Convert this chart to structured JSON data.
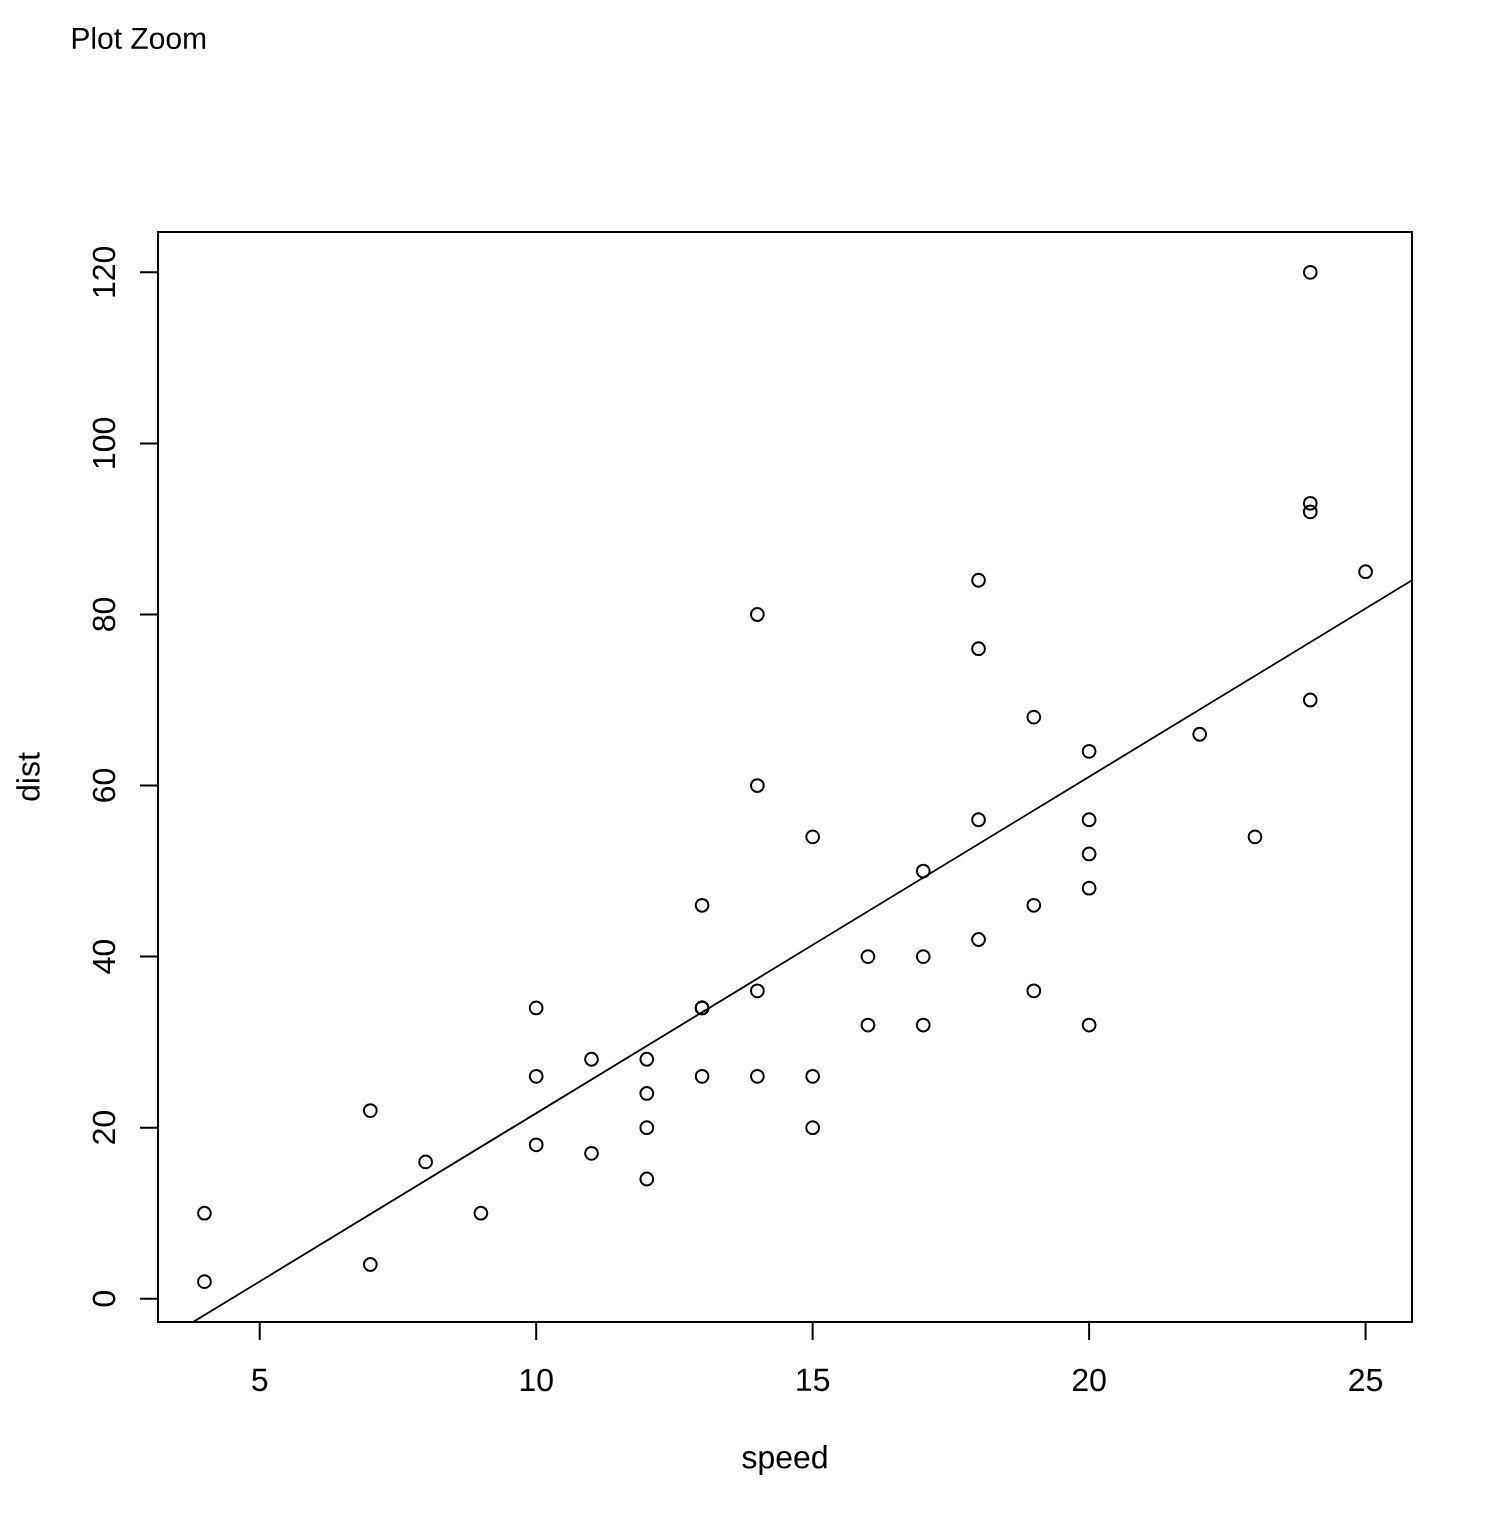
{
  "chart_data": {
    "type": "scatter",
    "xlabel": "speed",
    "ylabel": "dist",
    "annotations": [
      "Plot Zoom"
    ],
    "series": [
      {
        "type": "scatter",
        "color": "#000000",
        "marker": "circle",
        "x": [
          4,
          4,
          7,
          7,
          8,
          9,
          10,
          10,
          10,
          11,
          11,
          12,
          12,
          12,
          12,
          13,
          13,
          13,
          13,
          14,
          14,
          14,
          14,
          15,
          15,
          15,
          16,
          16,
          17,
          17,
          17,
          18,
          18,
          18,
          18,
          19,
          19,
          19,
          20,
          20,
          20,
          20,
          20,
          22,
          23,
          24,
          24,
          24,
          24,
          25
        ],
        "values": [
          2,
          10,
          4,
          22,
          16,
          10,
          18,
          26,
          34,
          17,
          28,
          14,
          20,
          24,
          28,
          26,
          34,
          34,
          46,
          26,
          36,
          60,
          80,
          20,
          26,
          54,
          32,
          40,
          32,
          40,
          50,
          42,
          56,
          76,
          84,
          36,
          46,
          68,
          32,
          48,
          52,
          56,
          64,
          66,
          54,
          70,
          92,
          93,
          120,
          85
        ]
      },
      {
        "type": "line",
        "color": "#000000",
        "marker": "none",
        "line_style": "solid",
        "x": [
          3.8,
          25.84
        ],
        "values": [
          -2.7,
          84
        ]
      }
    ],
    "xlim": [
      3.16,
      25.84
    ],
    "ylim": [
      -2.72,
      124.72
    ],
    "xticks": [
      5,
      10,
      15,
      20,
      25
    ],
    "yticks": [
      0,
      20,
      40,
      60,
      80,
      100,
      120
    ]
  }
}
